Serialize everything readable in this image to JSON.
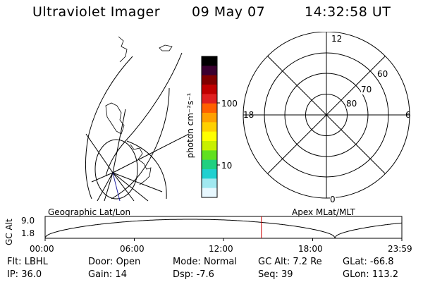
{
  "header": {
    "instrument": "Ultraviolet Imager",
    "date": "09 May 07",
    "time": "14:32:58 UT"
  },
  "colorbar": {
    "unit_label": "photon cm⁻²s⁻¹",
    "ticks": [
      "100",
      "10"
    ],
    "scale": "log",
    "colors": [
      "#000000",
      "#3a0030",
      "#800000",
      "#c00000",
      "#e02020",
      "#ff6000",
      "#ffa000",
      "#ffd000",
      "#ffff00",
      "#c8f000",
      "#60e020",
      "#20d080",
      "#20d0d0",
      "#a0e8f0",
      "#e8f8ff"
    ]
  },
  "polar_plot": {
    "lat_labels": [
      "60",
      "70",
      "80"
    ],
    "mlt_labels": {
      "top": "12",
      "left": "18",
      "right": "6",
      "bottom": "0"
    }
  },
  "timeline": {
    "left_title": "Geographic Lat/Lon",
    "right_title": "Apex MLat/MLT",
    "y_axis_label": "GC Alt",
    "y_ticks": [
      "9.0",
      "1.8"
    ],
    "x_ticks": [
      "00:00",
      "06:00",
      "12:00",
      "18:00",
      "23:59"
    ],
    "current_time_hours": 14.55,
    "current_marker_color": "#cc0000"
  },
  "info": {
    "row1": [
      {
        "key": "Flt:",
        "value": "LBHL"
      },
      {
        "key": "Door:",
        "value": "Open"
      },
      {
        "key": "Mode:",
        "value": "Normal"
      },
      {
        "key": "GC Alt:",
        "value": "7.2 Re"
      },
      {
        "key": "GLat:",
        "value": "-66.8"
      }
    ],
    "row2": [
      {
        "key": "IP:",
        "value": "36.0"
      },
      {
        "key": "Gain:",
        "value": "14"
      },
      {
        "key": "Dsp:",
        "value": "-7.6"
      },
      {
        "key": "Seq:",
        "value": "39"
      },
      {
        "key": "GLon:",
        "value": "113.2"
      }
    ]
  }
}
